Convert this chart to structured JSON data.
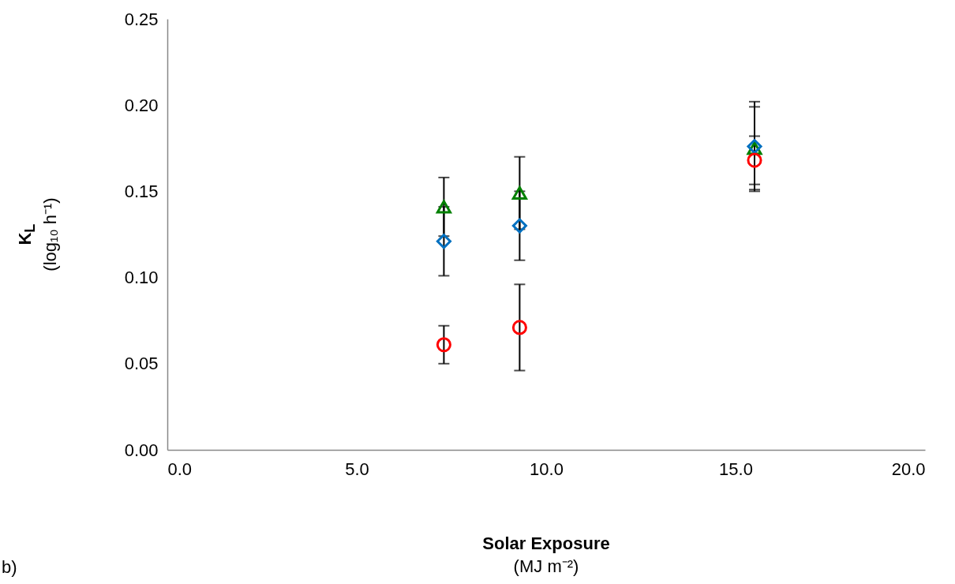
{
  "chart_data": {
    "type": "scatter",
    "xlabel": "Solar Exposure\n(MJ m⁻²)",
    "ylabel": "K$_{L}$\n(log₁₀ h⁻¹)",
    "annotations": [
      "b)"
    ],
    "x": [
      7.3,
      9.3,
      15.5
    ],
    "series": [
      {
        "color": "#ff0000",
        "marker": "circle",
        "values": [
          0.061,
          0.071,
          0.168
        ],
        "errors": [
          0.011,
          0.025,
          0.014
        ]
      },
      {
        "color": "#0070c0",
        "marker": "diamond",
        "values": [
          0.121,
          0.13,
          0.176
        ],
        "errors": [
          0.02,
          0.02,
          0.026
        ]
      },
      {
        "color": "#008000",
        "marker": "triangle",
        "values": [
          0.141,
          0.149,
          0.175
        ],
        "errors": [
          0.017,
          0.021,
          0.024
        ]
      }
    ],
    "xlim": [
      0,
      20
    ],
    "xticks": [
      {
        "value": 0,
        "label": "0.0"
      },
      {
        "value": 5,
        "label": "5.0"
      },
      {
        "value": 10,
        "label": "10.0"
      },
      {
        "value": 15,
        "label": "15.0"
      },
      {
        "value": 20,
        "label": "20.0"
      }
    ],
    "ylim": [
      0,
      0.25
    ],
    "yticks": [
      {
        "value": 0,
        "label": "0.00"
      },
      {
        "value": 0.05,
        "label": "0.05"
      },
      {
        "value": 0.1,
        "label": "0.10"
      },
      {
        "value": 0.15,
        "label": "0.15"
      },
      {
        "value": 0.2,
        "label": "0.20"
      },
      {
        "value": 0.25,
        "label": "0.25"
      }
    ],
    "grid": false
  }
}
